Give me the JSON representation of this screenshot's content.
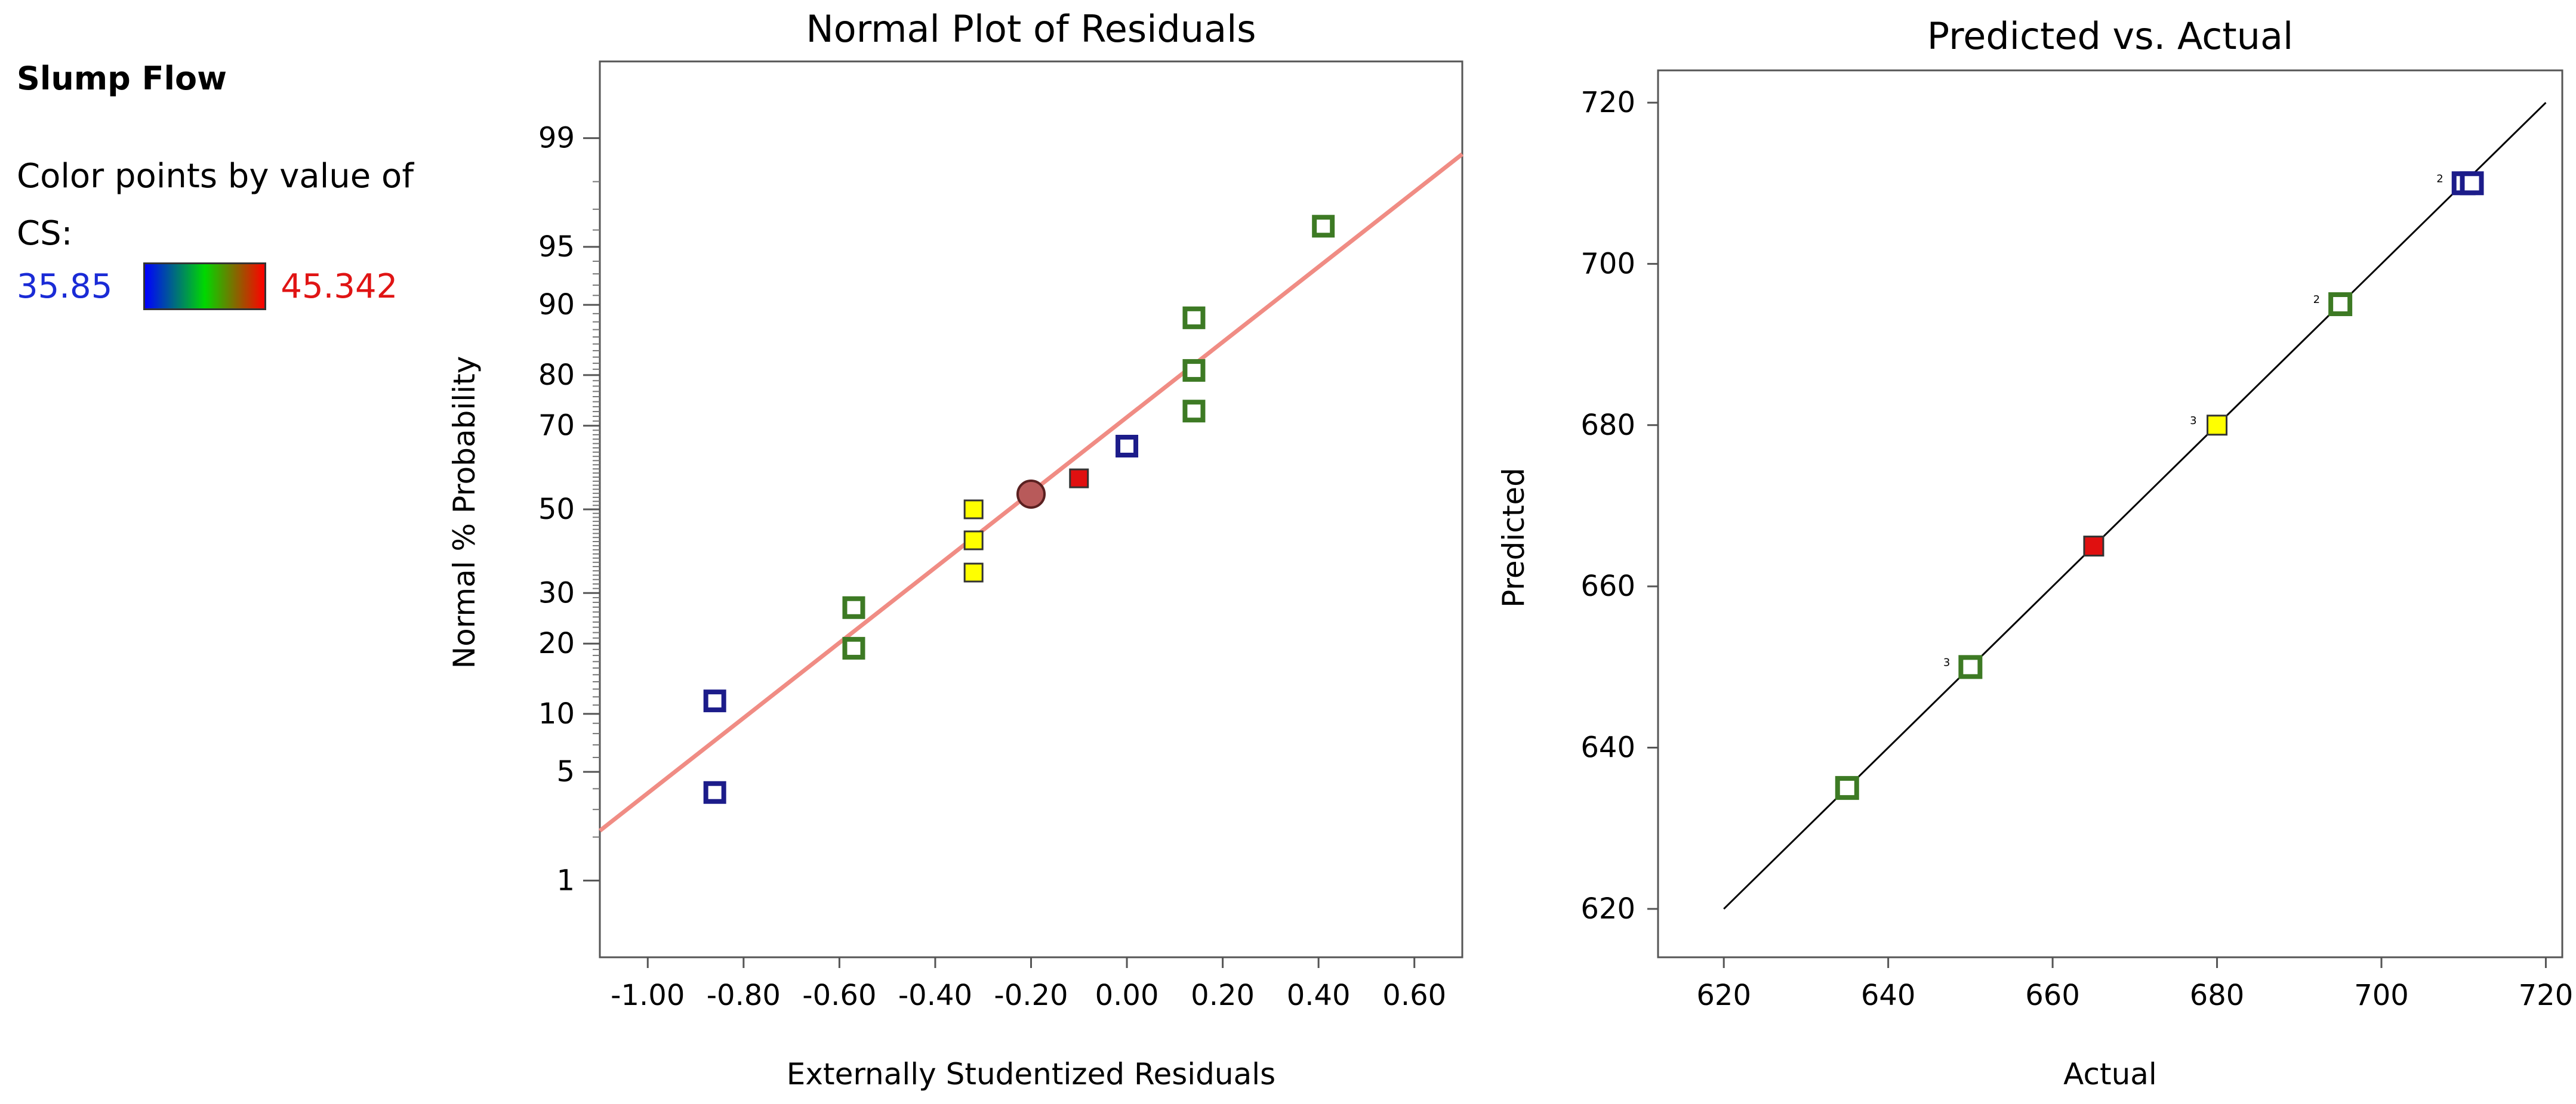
{
  "legend": {
    "title": "Slump Flow",
    "color_label": "Color points by value of",
    "variable": "CS:",
    "min": "35.85",
    "max": "45.342",
    "gradient": [
      "#0000ff",
      "#00d800",
      "#ff0000"
    ]
  },
  "chart_data": [
    {
      "type": "scatter",
      "title": "Normal Plot of Residuals",
      "xlabel": "Externally Studentized Residuals",
      "ylabel": "Normal % Probability",
      "xlim": [
        -1.1,
        0.7
      ],
      "xticks": [
        -1.0,
        -0.8,
        -0.6,
        -0.4,
        -0.2,
        0.0,
        0.2,
        0.4,
        0.6
      ],
      "xtick_labels": [
        "-1.00",
        "-0.80",
        "-0.60",
        "-0.40",
        "-0.20",
        "0.00",
        "0.20",
        "0.40",
        "0.60"
      ],
      "yscale": "normal-probability",
      "yticks": [
        1,
        5,
        10,
        20,
        30,
        50,
        70,
        80,
        90,
        95,
        99
      ],
      "yticks_labels": [
        "1",
        "5",
        "10",
        "20",
        "30",
        "50",
        "70",
        "80",
        "90",
        "95",
        "99"
      ],
      "reference_line": {
        "x": [
          -1.1,
          0.7
        ],
        "y": [
          2.2,
          98.7
        ],
        "color": "#f08c84"
      },
      "points": [
        {
          "x": -0.86,
          "y": 3.8,
          "color": "#1c1c8a",
          "filled": false
        },
        {
          "x": -0.86,
          "y": 11.5,
          "color": "#1c1c8a",
          "filled": false
        },
        {
          "x": -0.57,
          "y": 19.2,
          "color": "#3d7a24",
          "filled": false
        },
        {
          "x": -0.57,
          "y": 26.9,
          "color": "#3d7a24",
          "filled": false
        },
        {
          "x": -0.32,
          "y": 34.6,
          "color": "#ffff00",
          "filled": true
        },
        {
          "x": -0.32,
          "y": 42.3,
          "color": "#ffff00",
          "filled": true
        },
        {
          "x": -0.32,
          "y": 50.0,
          "color": "#ffff00",
          "filled": true
        },
        {
          "x": -0.2,
          "y": 53.8,
          "color": "#b85a5a",
          "filled": true,
          "shape": "circle"
        },
        {
          "x": -0.1,
          "y": 57.7,
          "color": "#e01010",
          "filled": true
        },
        {
          "x": 0.0,
          "y": 65.4,
          "color": "#1c1c8a",
          "filled": false
        },
        {
          "x": 0.14,
          "y": 73.1,
          "color": "#3d7a24",
          "filled": false
        },
        {
          "x": 0.14,
          "y": 80.8,
          "color": "#3d7a24",
          "filled": false
        },
        {
          "x": 0.14,
          "y": 88.5,
          "color": "#3d7a24",
          "filled": false
        },
        {
          "x": 0.41,
          "y": 96.2,
          "color": "#3d7a24",
          "filled": false
        }
      ]
    },
    {
      "type": "scatter",
      "title": "Predicted vs. Actual",
      "xlabel": "Actual",
      "ylabel": "Predicted",
      "xlim": [
        612,
        722
      ],
      "ylim": [
        614,
        724
      ],
      "xticks": [
        620,
        640,
        660,
        680,
        700,
        720
      ],
      "yticks": [
        620,
        640,
        660,
        680,
        700,
        720
      ],
      "xtick_labels": [
        "620",
        "640",
        "660",
        "680",
        "700",
        "720"
      ],
      "ytick_labels": [
        "620",
        "640",
        "660",
        "680",
        "700",
        "720"
      ],
      "reference_line": {
        "x": [
          620,
          720
        ],
        "y": [
          620,
          720
        ],
        "color": "#000000"
      },
      "points": [
        {
          "x": 635,
          "y": 635,
          "color": "#3d7a24",
          "filled": false,
          "count": ""
        },
        {
          "x": 650,
          "y": 650,
          "color": "#3d7a24",
          "filled": false,
          "count": "3"
        },
        {
          "x": 665,
          "y": 665,
          "color": "#e01010",
          "filled": true,
          "count": ""
        },
        {
          "x": 680,
          "y": 680,
          "color": "#ffff00",
          "filled": true,
          "count": "3"
        },
        {
          "x": 695,
          "y": 695,
          "color": "#3d7a24",
          "filled": false,
          "count": "2"
        },
        {
          "x": 710,
          "y": 710,
          "color": "#1c1c8a",
          "filled": false,
          "count": "2"
        },
        {
          "x": 711,
          "y": 710,
          "color": "#1c1c8a",
          "filled": false,
          "count": ""
        }
      ]
    }
  ]
}
